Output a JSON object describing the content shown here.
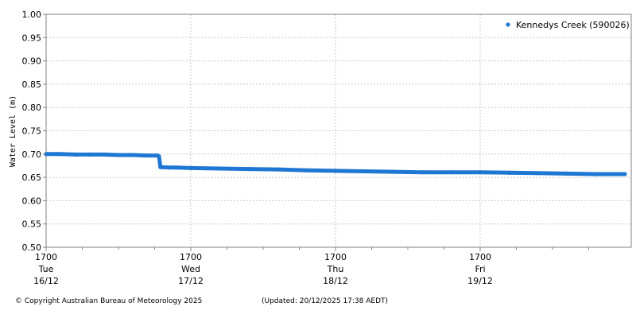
{
  "chart_data": {
    "type": "scatter",
    "ylabel": "Water Level (m)",
    "ylim": [
      0.5,
      1.0
    ],
    "y_ticks": [
      "0.50",
      "0.55",
      "0.60",
      "0.65",
      "0.70",
      "0.75",
      "0.80",
      "0.85",
      "0.90",
      "0.95",
      "1.00"
    ],
    "x_ticks": [
      {
        "time": "1700",
        "day": "Tue",
        "date": "16/12"
      },
      {
        "time": "1700",
        "day": "Wed",
        "date": "17/12"
      },
      {
        "time": "1700",
        "day": "Thu",
        "date": "18/12"
      },
      {
        "time": "1700",
        "day": "Fri",
        "date": "19/12"
      }
    ],
    "x_range_days": [
      0,
      4.0
    ],
    "grid": true,
    "legend_position": "top-right",
    "series": [
      {
        "name": "Kennedys Creek (590026)",
        "color": "#1f77d4",
        "points": [
          [
            0.0,
            0.7
          ],
          [
            0.1,
            0.7
          ],
          [
            0.2,
            0.699
          ],
          [
            0.3,
            0.699
          ],
          [
            0.4,
            0.699
          ],
          [
            0.5,
            0.698
          ],
          [
            0.6,
            0.698
          ],
          [
            0.7,
            0.697
          ],
          [
            0.77,
            0.697
          ],
          [
            0.78,
            0.695
          ],
          [
            0.79,
            0.672
          ],
          [
            0.8,
            0.672
          ],
          [
            0.85,
            0.671
          ],
          [
            0.9,
            0.671
          ],
          [
            1.0,
            0.67
          ],
          [
            1.2,
            0.669
          ],
          [
            1.4,
            0.668
          ],
          [
            1.6,
            0.667
          ],
          [
            1.8,
            0.665
          ],
          [
            2.0,
            0.664
          ],
          [
            2.2,
            0.663
          ],
          [
            2.4,
            0.662
          ],
          [
            2.6,
            0.661
          ],
          [
            2.8,
            0.661
          ],
          [
            3.0,
            0.661
          ],
          [
            3.2,
            0.66
          ],
          [
            3.4,
            0.659
          ],
          [
            3.6,
            0.658
          ],
          [
            3.8,
            0.657
          ],
          [
            4.0,
            0.657
          ]
        ]
      }
    ]
  },
  "footer": {
    "copyright": "© Copyright Australian Bureau of Meteorology 2025",
    "updated": "(Updated: 20/12/2025 17:38 AEDT)"
  }
}
